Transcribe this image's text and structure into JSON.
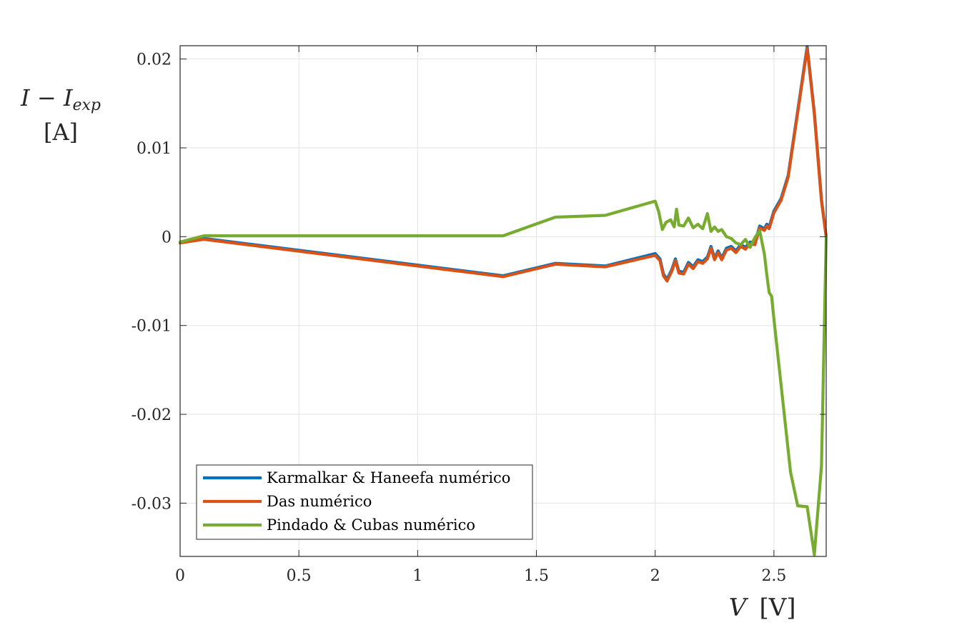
{
  "chart_data": {
    "type": "line",
    "title": "",
    "xlabel": {
      "var": "V",
      "unit": "[V]"
    },
    "ylabel": {
      "main": "I − I",
      "sub": "exp",
      "unit": "[A]"
    },
    "xlim": [
      0,
      2.72
    ],
    "ylim": [
      -0.036,
      0.0215
    ],
    "xticks": [
      0,
      0.5,
      1,
      1.5,
      2,
      2.5
    ],
    "xtick_labels": [
      "0",
      "0.5",
      "1",
      "1.5",
      "2",
      "2.5"
    ],
    "yticks": [
      0.02,
      0.01,
      0,
      -0.01,
      -0.02,
      -0.03
    ],
    "ytick_labels": [
      "0.02",
      "0.01",
      "0",
      "-0.01",
      "-0.02",
      "-0.03"
    ],
    "grid": true,
    "legend_position": "bottom-left",
    "series": [
      {
        "name": "Karmalkar & Haneefa numérico",
        "color": "#0072BD",
        "x": [
          0,
          0.1,
          1.36,
          1.58,
          1.79,
          2.0,
          2.02,
          2.035,
          2.05,
          2.07,
          2.085,
          2.1,
          2.12,
          2.14,
          2.16,
          2.18,
          2.2,
          2.22,
          2.235,
          2.25,
          2.265,
          2.28,
          2.3,
          2.32,
          2.34,
          2.36,
          2.38,
          2.4,
          2.42,
          2.44,
          2.46,
          2.47,
          2.48,
          2.5,
          2.53,
          2.56,
          2.64,
          2.67,
          2.7,
          2.72
        ],
        "y": [
          -0.0007,
          -0.0002,
          -0.0044,
          -0.003,
          -0.0033,
          -0.0019,
          -0.0025,
          -0.0042,
          -0.0048,
          -0.0037,
          -0.0025,
          -0.0039,
          -0.004,
          -0.0029,
          -0.0034,
          -0.0026,
          -0.0028,
          -0.0023,
          -0.0011,
          -0.0024,
          -0.0016,
          -0.0024,
          -0.0013,
          -0.0011,
          -0.0016,
          -0.0009,
          -0.0012,
          -0.0006,
          -0.0007,
          0.0012,
          0.0009,
          0.0014,
          0.0011,
          0.0029,
          0.0043,
          0.0069,
          0.0214,
          0.014,
          0.0042,
          0.0
        ]
      },
      {
        "name": "Das numérico",
        "color": "#D95319",
        "x": [
          0,
          0.1,
          1.36,
          1.58,
          1.79,
          2.0,
          2.02,
          2.035,
          2.05,
          2.07,
          2.085,
          2.1,
          2.12,
          2.14,
          2.16,
          2.18,
          2.2,
          2.22,
          2.235,
          2.25,
          2.265,
          2.28,
          2.3,
          2.32,
          2.34,
          2.36,
          2.38,
          2.4,
          2.42,
          2.44,
          2.46,
          2.47,
          2.48,
          2.5,
          2.53,
          2.56,
          2.64,
          2.67,
          2.7,
          2.72
        ],
        "y": [
          -0.0007,
          -0.0003,
          -0.0045,
          -0.0031,
          -0.0034,
          -0.0021,
          -0.0027,
          -0.0044,
          -0.005,
          -0.0039,
          -0.0027,
          -0.0041,
          -0.0042,
          -0.0031,
          -0.0036,
          -0.0028,
          -0.003,
          -0.0025,
          -0.0013,
          -0.0026,
          -0.0018,
          -0.0026,
          -0.0015,
          -0.0013,
          -0.0018,
          -0.0011,
          -0.0014,
          -0.0008,
          -0.0009,
          0.001,
          0.0007,
          0.0012,
          0.0009,
          0.0027,
          0.0041,
          0.0067,
          0.0212,
          0.0138,
          0.004,
          0.0
        ]
      },
      {
        "name": "Pindado & Cubas numérico",
        "color": "#77AC30",
        "x": [
          0,
          0.1,
          1.36,
          1.58,
          1.79,
          2.0,
          2.015,
          2.03,
          2.045,
          2.065,
          2.08,
          2.09,
          2.1,
          2.12,
          2.14,
          2.16,
          2.18,
          2.2,
          2.22,
          2.235,
          2.25,
          2.265,
          2.28,
          2.3,
          2.32,
          2.34,
          2.36,
          2.38,
          2.4,
          2.42,
          2.44,
          2.46,
          2.47,
          2.48,
          2.49,
          2.5,
          2.57,
          2.6,
          2.64,
          2.67,
          2.7,
          2.72
        ],
        "y": [
          -0.0006,
          0.0001,
          0.0001,
          0.0022,
          0.0024,
          0.004,
          0.0028,
          0.0008,
          0.0016,
          0.0019,
          0.0011,
          0.0031,
          0.0013,
          0.0012,
          0.0021,
          0.001,
          0.0014,
          0.0009,
          0.0026,
          0.0006,
          0.0011,
          0.0006,
          0.0008,
          0.0,
          -0.0002,
          -0.0007,
          -0.0009,
          -0.0003,
          -0.0012,
          -0.0001,
          0.0007,
          -0.002,
          -0.0043,
          -0.0063,
          -0.0067,
          -0.0093,
          -0.0265,
          -0.0303,
          -0.0304,
          -0.0358,
          -0.0258,
          0.0
        ]
      }
    ]
  }
}
